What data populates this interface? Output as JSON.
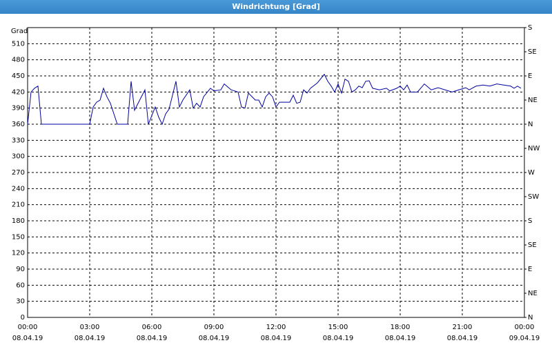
{
  "chart_data": {
    "type": "line",
    "title": "Windrichtung [Grad]",
    "ylabel": "Grad",
    "x": [
      "08.04.19 00:00",
      "08.04.19 00:10",
      "08.04.19 00:20",
      "08.04.19 00:30",
      "08.04.19 00:40",
      "08.04.19 03:00",
      "08.04.19 03:10",
      "08.04.19 03:20",
      "08.04.19 03:30",
      "08.04.19 03:40",
      "08.04.19 03:50",
      "08.04.19 04:00",
      "08.04.19 04:20",
      "08.04.19 04:50",
      "08.04.19 05:00",
      "08.04.19 05:10",
      "08.04.19 05:40",
      "08.04.19 05:50",
      "08.04.19 06:10",
      "08.04.19 06:20",
      "08.04.19 06:30",
      "08.04.19 06:40",
      "08.04.19 06:50",
      "08.04.19 07:10",
      "08.04.19 07:20",
      "08.04.19 07:30",
      "08.04.19 07:50",
      "08.04.19 08:00",
      "08.04.19 08:10",
      "08.04.19 08:20",
      "08.04.19 08:30",
      "08.04.19 08:50",
      "08.04.19 09:00",
      "08.04.19 09:20",
      "08.04.19 09:30",
      "08.04.19 09:50",
      "08.04.19 10:10",
      "08.04.19 10:20",
      "08.04.19 10:30",
      "08.04.19 10:40",
      "08.04.19 11:00",
      "08.04.19 11:10",
      "08.04.19 11:20",
      "08.04.19 11:30",
      "08.04.19 11:40",
      "08.04.19 11:50",
      "08.04.19 12:00",
      "08.04.19 12:10",
      "08.04.19 12:40",
      "08.04.19 12:50",
      "08.04.19 13:00",
      "08.04.19 13:10",
      "08.04.19 13:20",
      "08.04.19 13:30",
      "08.04.19 13:40",
      "08.04.19 14:00",
      "08.04.19 14:20",
      "08.04.19 14:30",
      "08.04.19 14:40",
      "08.04.19 14:50",
      "08.04.19 15:00",
      "08.04.19 15:10",
      "08.04.19 15:20",
      "08.04.19 15:30",
      "08.04.19 15:40",
      "08.04.19 15:50",
      "08.04.19 16:00",
      "08.04.19 16:10",
      "08.04.19 16:20",
      "08.04.19 16:30",
      "08.04.19 16:40",
      "08.04.19 17:00",
      "08.04.19 17:20",
      "08.04.19 17:30",
      "08.04.19 17:50",
      "08.04.19 18:00",
      "08.04.19 18:10",
      "08.04.19 18:20",
      "08.04.19 18:30",
      "08.04.19 18:50",
      "08.04.19 19:10",
      "08.04.19 19:30",
      "08.04.19 19:50",
      "08.04.19 20:10",
      "08.04.19 20:30",
      "08.04.19 20:50",
      "08.04.19 21:10",
      "08.04.19 21:20",
      "08.04.19 21:40",
      "08.04.19 22:00",
      "08.04.19 22:20",
      "08.04.19 22:40",
      "08.04.19 23:00",
      "08.04.19 23:20",
      "08.04.19 23:30",
      "08.04.19 23:40",
      "08.04.19 23:50"
    ],
    "series": [
      {
        "name": "Windrichtung",
        "color": "#0000a0",
        "values": [
          360,
          420,
          427,
          431,
          360,
          360,
          392,
          401,
          405,
          427,
          411,
          399,
          360,
          360,
          440,
          386,
          424,
          360,
          392,
          373,
          360,
          379,
          388,
          440,
          392,
          405,
          424,
          390,
          399,
          392,
          411,
          427,
          422,
          424,
          435,
          424,
          420,
          392,
          390,
          418,
          405,
          405,
          392,
          411,
          418,
          411,
          392,
          401,
          401,
          414,
          399,
          401,
          424,
          418,
          427,
          437,
          453,
          440,
          431,
          420,
          435,
          418,
          444,
          440,
          420,
          424,
          431,
          428,
          440,
          441,
          427,
          424,
          427,
          422,
          427,
          431,
          424,
          433,
          420,
          420,
          435,
          424,
          428,
          424,
          420,
          424,
          428,
          424,
          431,
          433,
          431,
          435,
          433,
          431,
          427,
          431,
          427
        ]
      }
    ],
    "xlim": [
      "08.04.19 00:00",
      "09.04.19 00:00"
    ],
    "xticks": [
      {
        "value": "08.04.19 00:00",
        "label": [
          "00:00",
          "08.04.19"
        ]
      },
      {
        "value": "08.04.19 03:00",
        "label": [
          "03:00",
          "08.04.19"
        ]
      },
      {
        "value": "08.04.19 06:00",
        "label": [
          "06:00",
          "08.04.19"
        ]
      },
      {
        "value": "08.04.19 09:00",
        "label": [
          "09:00",
          "08.04.19"
        ]
      },
      {
        "value": "08.04.19 12:00",
        "label": [
          "12:00",
          "08.04.19"
        ]
      },
      {
        "value": "08.04.19 15:00",
        "label": [
          "15:00",
          "08.04.19"
        ]
      },
      {
        "value": "08.04.19 18:00",
        "label": [
          "18:00",
          "08.04.19"
        ]
      },
      {
        "value": "08.04.19 21:00",
        "label": [
          "21:00",
          "08.04.19"
        ]
      },
      {
        "value": "09.04.19 00:00",
        "label": [
          "00:00",
          "09.04.19"
        ]
      }
    ],
    "ylim": [
      0,
      540
    ],
    "yticks": [
      0,
      30,
      60,
      90,
      120,
      150,
      180,
      210,
      240,
      270,
      300,
      330,
      360,
      390,
      420,
      450,
      480,
      510
    ],
    "y2lim": [
      0,
      540
    ],
    "y2ticks": [
      {
        "value": 0,
        "label": "N"
      },
      {
        "value": 45,
        "label": "NE"
      },
      {
        "value": 90,
        "label": "E"
      },
      {
        "value": 135,
        "label": "SE"
      },
      {
        "value": 180,
        "label": "S"
      },
      {
        "value": 225,
        "label": "SW"
      },
      {
        "value": 270,
        "label": "W"
      },
      {
        "value": 315,
        "label": "NW"
      },
      {
        "value": 360,
        "label": "N"
      },
      {
        "value": 405,
        "label": "NE"
      },
      {
        "value": 450,
        "label": "E"
      },
      {
        "value": 495,
        "label": "SE"
      },
      {
        "value": 540,
        "label": "S"
      }
    ],
    "grid": true
  }
}
